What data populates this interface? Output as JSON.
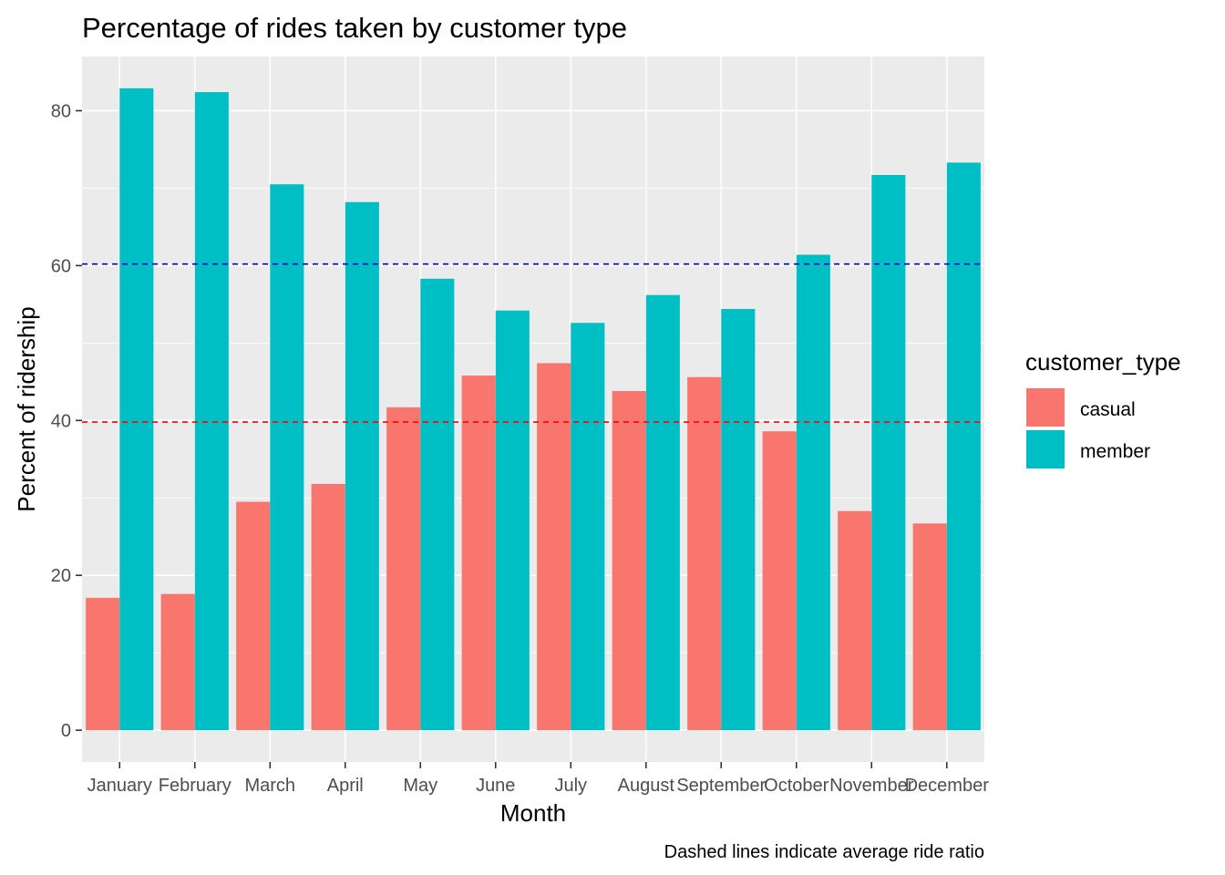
{
  "chart_data": {
    "type": "bar",
    "title": "Percentage of rides taken by customer type",
    "xlabel": "Month",
    "ylabel": "Percent of ridership",
    "caption": "Dashed lines indicate average ride ratio",
    "categories": [
      "January",
      "February",
      "March",
      "April",
      "May",
      "June",
      "July",
      "August",
      "September",
      "October",
      "November",
      "December"
    ],
    "series": [
      {
        "name": "casual",
        "color": "#F8766D",
        "values": [
          17.1,
          17.6,
          29.5,
          31.8,
          41.7,
          45.8,
          47.4,
          43.8,
          45.6,
          38.6,
          28.3,
          26.7
        ]
      },
      {
        "name": "member",
        "color": "#00BFC4",
        "values": [
          82.9,
          82.4,
          70.5,
          68.2,
          58.3,
          54.2,
          52.6,
          56.2,
          54.4,
          61.4,
          71.7,
          73.3
        ]
      }
    ],
    "reference_lines": [
      {
        "value": 60.2,
        "color": "#0000CD",
        "style": "dashed"
      },
      {
        "value": 39.8,
        "color": "#FF0000",
        "style": "dashed"
      }
    ],
    "yticks": [
      0,
      20,
      40,
      60,
      80
    ],
    "ylim": [
      -4.1,
      87.0
    ],
    "legend": {
      "title": "customer_type",
      "position": "right"
    },
    "grid": true,
    "panel_background": "#EBEBEB"
  }
}
